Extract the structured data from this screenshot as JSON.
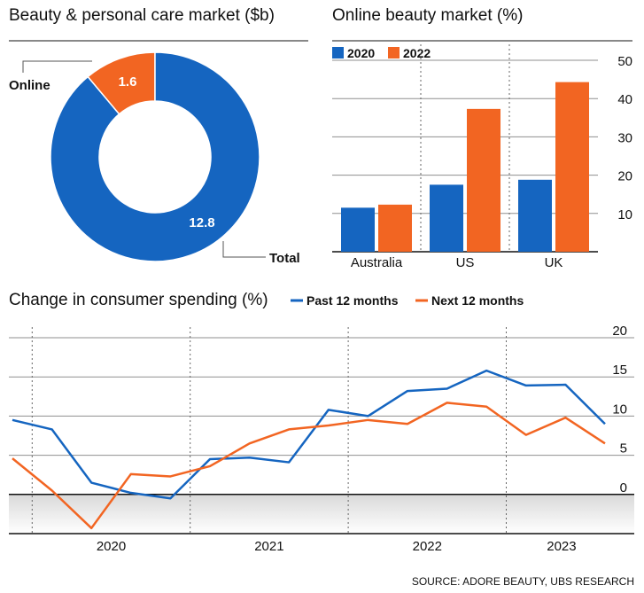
{
  "colors": {
    "blue": "#1565c0",
    "orange": "#f26522",
    "grid": "#8f8f8f",
    "dotted": "#666666"
  },
  "source": "SOURCE: ADORE BEAUTY, UBS RESEARCH",
  "chart_data": [
    {
      "type": "pie",
      "variant": "donut",
      "title": "Beauty & personal care market ($b)",
      "slices": [
        {
          "label": "Online",
          "value": 1.6,
          "display": "1.6",
          "color": "#f26522"
        },
        {
          "label": "Total",
          "value": 12.8,
          "display": "12.8",
          "color": "#1565c0"
        }
      ]
    },
    {
      "type": "bar",
      "title": "Online beauty market (%)",
      "categories": [
        "Australia",
        "US",
        "UK"
      ],
      "series": [
        {
          "name": "2020",
          "color": "#1565c0",
          "values": [
            11.5,
            17.5,
            18.8
          ]
        },
        {
          "name": "2022",
          "color": "#f26522",
          "values": [
            12.3,
            37.3,
            44.3
          ]
        }
      ],
      "ylim": [
        0,
        50
      ],
      "yticks": [
        10,
        20,
        30,
        40,
        50
      ],
      "grid": true,
      "legend": "top-left"
    },
    {
      "type": "line",
      "title": "Change in consumer spending (%)",
      "x": [
        "2019-Q4",
        "2020-Q1",
        "2020-Q2",
        "2020-Q3",
        "2020-Q4",
        "2021-Q1",
        "2021-Q2",
        "2021-Q3",
        "2021-Q4",
        "2022-Q1",
        "2022-Q2",
        "2022-Q3",
        "2022-Q4",
        "2023-Q1",
        "2023-Q2",
        "2023-Q3"
      ],
      "xtick_labels": [
        "2020",
        "2021",
        "2022",
        "2023"
      ],
      "series": [
        {
          "name": "Past 12 months",
          "color": "#1565c0",
          "values": [
            9.5,
            8.3,
            1.5,
            0.2,
            -0.5,
            4.5,
            4.7,
            4.1,
            10.8,
            10.0,
            13.2,
            13.5,
            15.8,
            13.9,
            14.0,
            9.0
          ]
        },
        {
          "name": "Next 12 months",
          "color": "#f26522",
          "values": [
            4.6,
            0.5,
            -4.3,
            2.6,
            2.3,
            3.6,
            6.5,
            8.3,
            8.8,
            9.5,
            9.0,
            11.7,
            11.2,
            7.6,
            9.8,
            6.5
          ]
        }
      ],
      "ylim": [
        -5,
        20
      ],
      "yticks": [
        0,
        5,
        10,
        15,
        20
      ],
      "grid": true,
      "legend": "top"
    }
  ]
}
